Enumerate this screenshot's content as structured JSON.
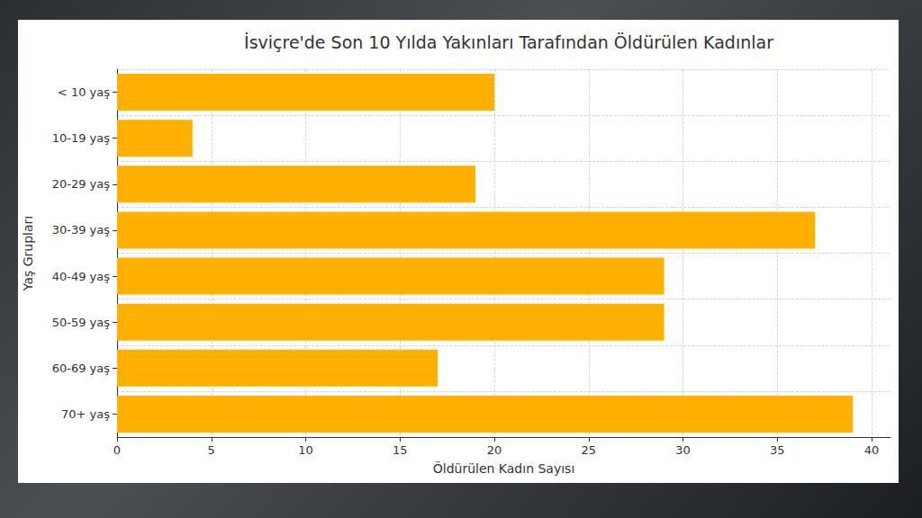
{
  "chart_data": {
    "type": "bar",
    "orientation": "horizontal",
    "title": "İsviçre'de Son 10 Yılda Yakınları Tarafından Öldürülen Kadınlar",
    "x_label": "Öldürülen Kadın Sayısı",
    "y_label": "Yaş Grupları",
    "categories": [
      "< 10 yaş",
      "10-19 yaş",
      "20-29 yaş",
      "30-39 yaş",
      "40-49 yaş",
      "50-59 yaş",
      "60-69 yaş",
      "70+ yaş"
    ],
    "values": [
      20,
      4,
      19,
      37,
      29,
      29,
      17,
      39
    ],
    "color": "#ffb000",
    "xlim": [
      0,
      41
    ],
    "xticks": [
      0,
      5,
      10,
      15,
      20,
      25,
      30,
      35,
      40
    ],
    "grid": true
  }
}
